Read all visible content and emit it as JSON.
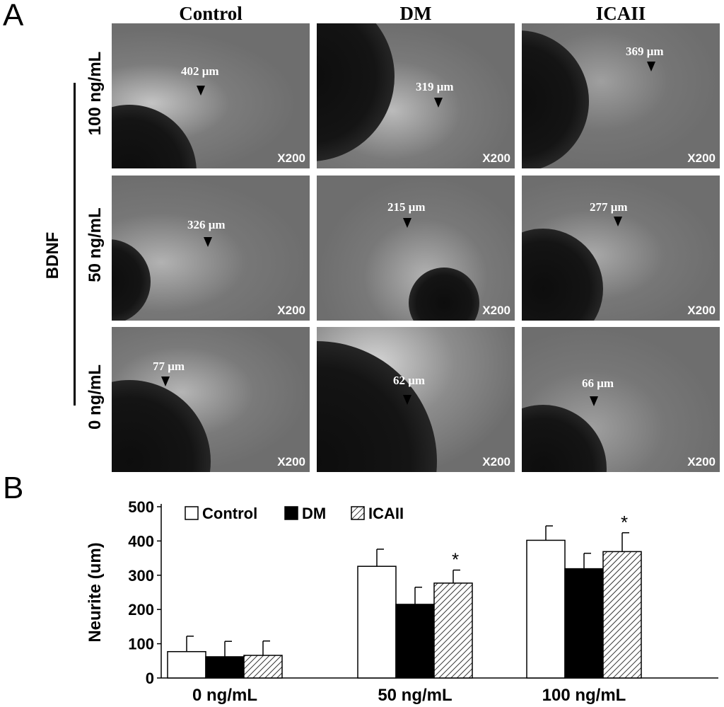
{
  "panel_a": {
    "letter": "A",
    "columns": [
      "Control",
      "DM",
      "ICAII"
    ],
    "side_label": "BDNF",
    "rows": [
      "100 ng/mL",
      "50 ng/mL",
      "0 ng/mL"
    ],
    "magnification": "X200",
    "measurements": [
      [
        "402 μm",
        "319 μm",
        "369 μm"
      ],
      [
        "326 μm",
        "215 μm",
        "277 μm"
      ],
      [
        "77 μm",
        "62 μm",
        "66 μm"
      ]
    ]
  },
  "panel_b": {
    "letter": "B"
  },
  "chart_data": {
    "type": "bar",
    "title": "",
    "xlabel": "",
    "ylabel": "Neurite (um)",
    "ylim": [
      0,
      500
    ],
    "yticks": [
      0,
      100,
      200,
      300,
      400,
      500
    ],
    "categories": [
      "0 ng/mL",
      "50 ng/mL",
      "100 ng/mL"
    ],
    "legend_position": "top-left",
    "series": [
      {
        "name": "Control",
        "fill": "white",
        "values": [
          77,
          326,
          402
        ],
        "errors": [
          45,
          50,
          42
        ]
      },
      {
        "name": "DM",
        "fill": "black",
        "values": [
          62,
          215,
          319
        ],
        "errors": [
          45,
          50,
          45
        ]
      },
      {
        "name": "ICAII",
        "fill": "hatched",
        "values": [
          66,
          277,
          369
        ],
        "errors": [
          42,
          38,
          55
        ]
      }
    ],
    "annotations": [
      {
        "text": "*",
        "category": "50 ng/mL",
        "series": "ICAII"
      },
      {
        "text": "*",
        "category": "100 ng/mL",
        "series": "ICAII"
      }
    ]
  }
}
